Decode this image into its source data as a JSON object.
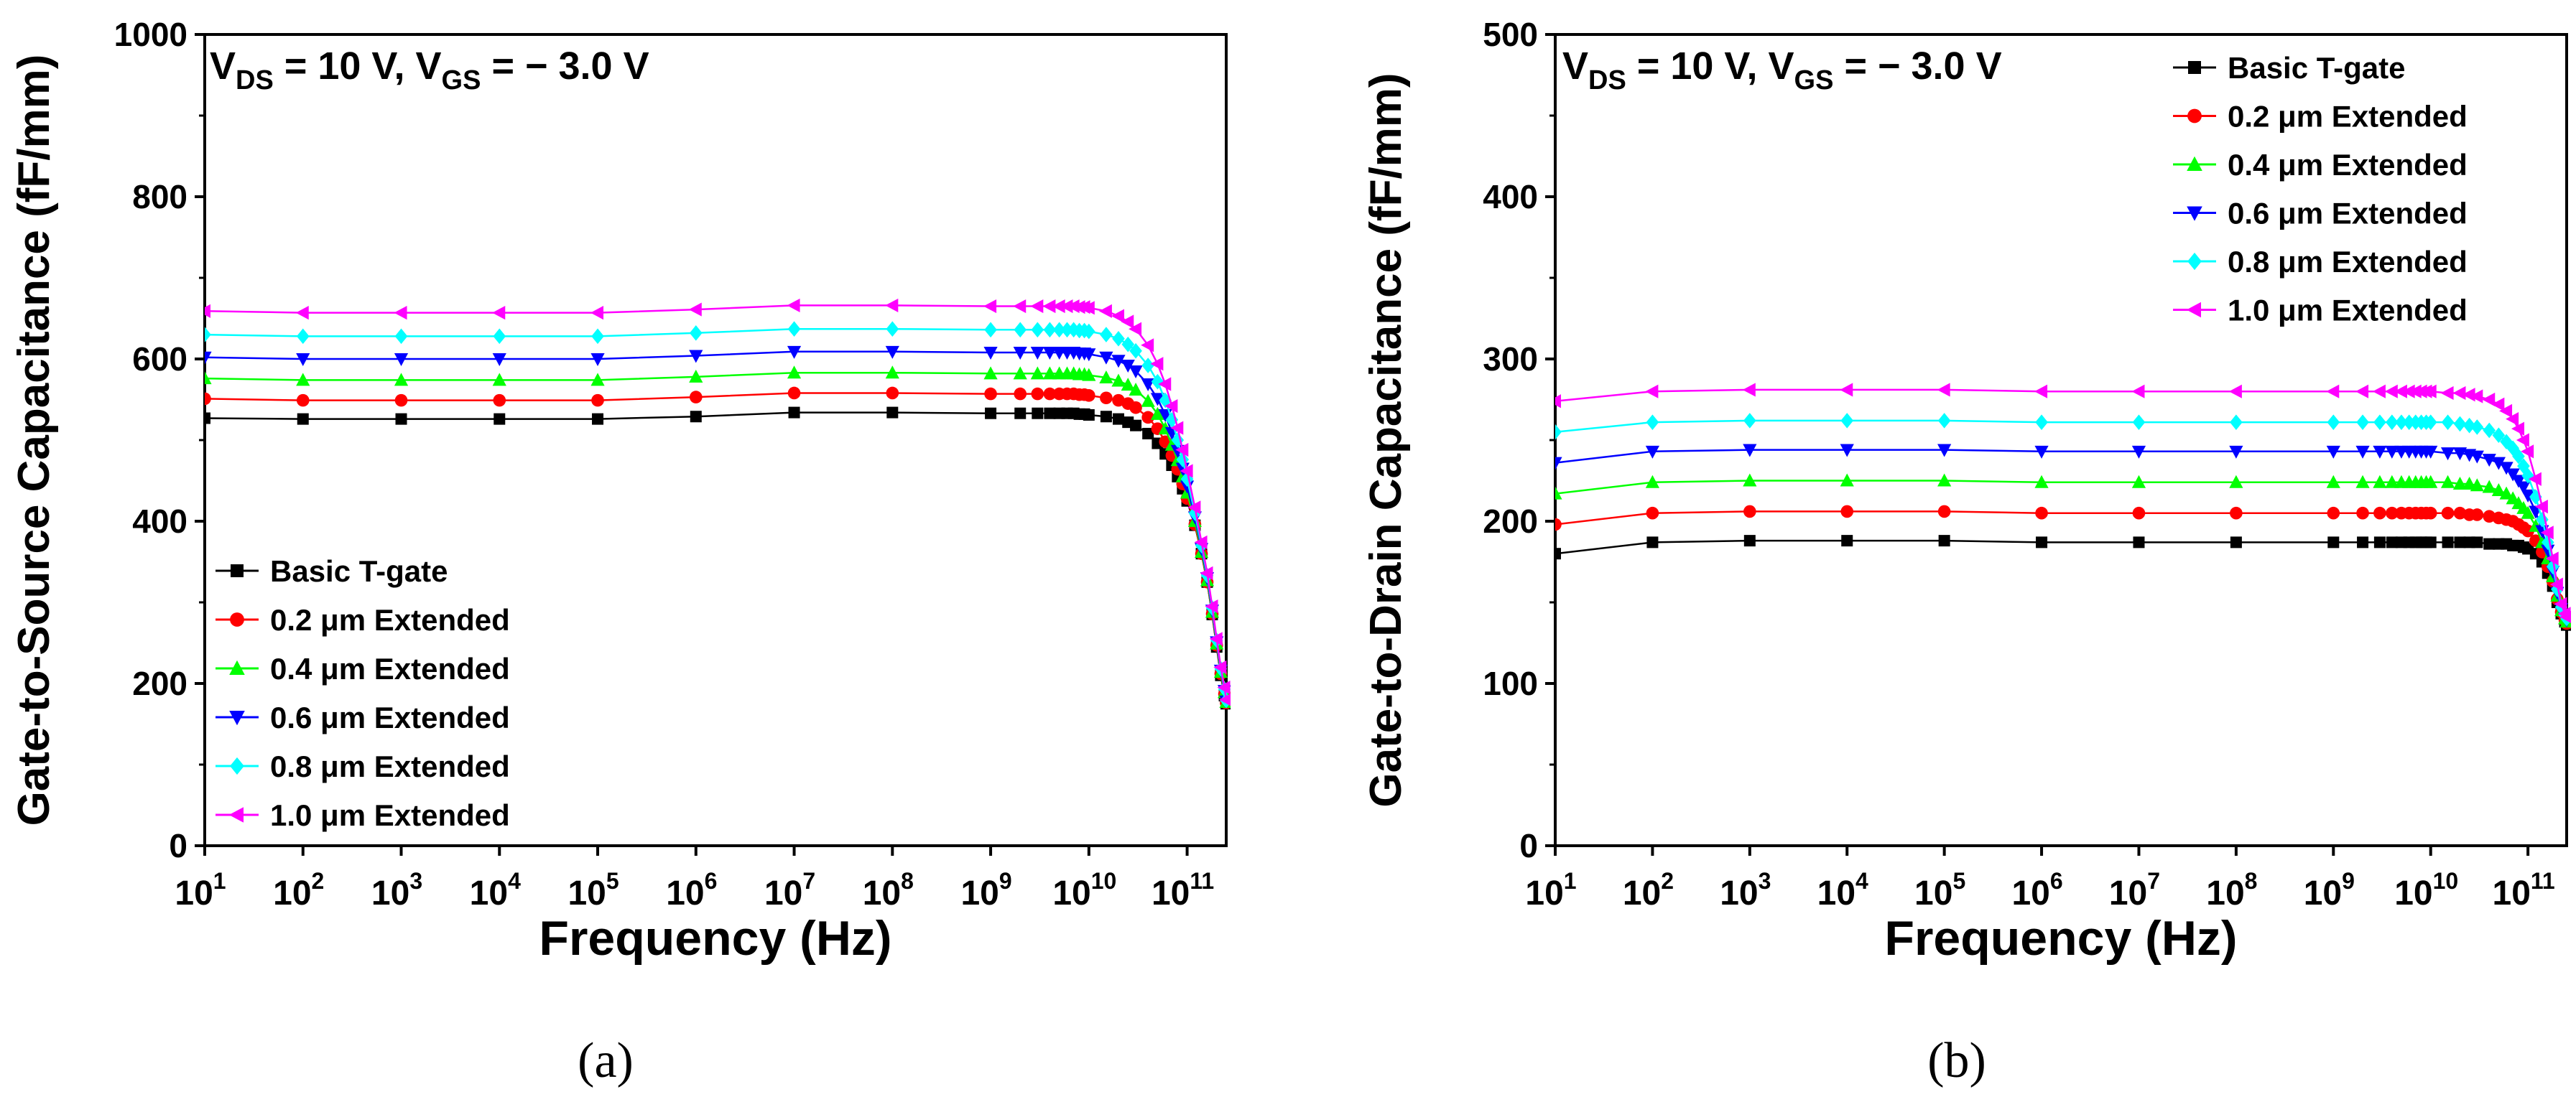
{
  "chart_data": [
    {
      "type": "line",
      "panel_label": "(a)",
      "ylabel": "Gate-to-Source Capacitance (fF/mm)",
      "xlabel": "Frequency (Hz)",
      "condition": {
        "v": "V",
        "ds": "DS",
        "mid": " = 10 V, V",
        "gs": "GS",
        "end": " = − 3.0 V"
      },
      "x_scale": "log",
      "xlim": [
        10,
        250000000000
      ],
      "ylim": [
        0,
        1000
      ],
      "yticks": [
        0,
        200,
        400,
        600,
        800,
        1000
      ],
      "xticks": [
        {
          "value": 10,
          "base": "10",
          "exp": "1"
        },
        {
          "value": 100,
          "base": "10",
          "exp": "2"
        },
        {
          "value": 1000,
          "base": "10",
          "exp": "3"
        },
        {
          "value": 10000,
          "base": "10",
          "exp": "4"
        },
        {
          "value": 100000,
          "base": "10",
          "exp": "5"
        },
        {
          "value": 1000000,
          "base": "10",
          "exp": "6"
        },
        {
          "value": 10000000,
          "base": "10",
          "exp": "7"
        },
        {
          "value": 100000000,
          "base": "10",
          "exp": "8"
        },
        {
          "value": 1000000000,
          "base": "10",
          "exp": "9"
        },
        {
          "value": 10000000000,
          "base": "10",
          "exp": "10"
        },
        {
          "value": 100000000000,
          "base": "10",
          "exp": "11"
        }
      ],
      "legend_position": "bottom-left",
      "x": [
        10,
        100,
        1000,
        10000,
        100000,
        1000000,
        10000000,
        100000000,
        1000000000,
        2000000000,
        3000000000,
        4000000000,
        5000000000,
        6000000000,
        7000000000,
        8000000000,
        9000000000,
        10000000000,
        15000000000,
        20000000000,
        25000000000,
        30000000000,
        40000000000,
        50000000000,
        60000000000,
        70000000000,
        80000000000,
        90000000000,
        100000000000,
        120000000000,
        140000000000,
        160000000000,
        180000000000,
        200000000000,
        220000000000,
        240000000000,
        250000000000
      ],
      "series": [
        {
          "name": "Basic T-gate",
          "color": "#000000",
          "marker": "square",
          "values": [
            527,
            526,
            526,
            526,
            526,
            529,
            534,
            534,
            533,
            533,
            533,
            533,
            533,
            533,
            533,
            532,
            532,
            531,
            529,
            526,
            522,
            518,
            508,
            496,
            483,
            469,
            455,
            440,
            425,
            395,
            360,
            325,
            285,
            245,
            210,
            185,
            175
          ]
        },
        {
          "name": "0.2 μm Extended",
          "color": "#ff0000",
          "marker": "circle",
          "values": [
            551,
            549,
            549,
            549,
            549,
            553,
            558,
            558,
            557,
            557,
            557,
            557,
            557,
            557,
            557,
            556,
            556,
            555,
            552,
            549,
            545,
            540,
            528,
            514,
            498,
            481,
            464,
            446,
            428,
            396,
            360,
            325,
            286,
            247,
            212,
            187,
            176
          ]
        },
        {
          "name": "0.4 μm Extended",
          "color": "#00ff00",
          "marker": "triangle-up",
          "values": [
            576,
            574,
            574,
            574,
            574,
            578,
            583,
            583,
            582,
            582,
            582,
            582,
            582,
            582,
            582,
            581,
            581,
            580,
            577,
            573,
            568,
            562,
            548,
            532,
            514,
            494,
            475,
            455,
            435,
            400,
            362,
            327,
            288,
            249,
            214,
            189,
            177
          ]
        },
        {
          "name": "0.6 μm Extended",
          "color": "#0000ff",
          "marker": "triangle-down",
          "values": [
            602,
            600,
            600,
            600,
            600,
            604,
            609,
            609,
            608,
            608,
            608,
            608,
            608,
            608,
            608,
            607,
            607,
            606,
            602,
            598,
            592,
            585,
            569,
            551,
            531,
            509,
            487,
            465,
            443,
            405,
            366,
            330,
            290,
            251,
            216,
            191,
            178
          ]
        },
        {
          "name": "0.8 μm Extended",
          "color": "#00ffff",
          "marker": "diamond",
          "values": [
            630,
            628,
            628,
            628,
            628,
            632,
            637,
            637,
            636,
            636,
            636,
            636,
            636,
            636,
            636,
            635,
            635,
            634,
            630,
            625,
            618,
            610,
            592,
            572,
            549,
            525,
            500,
            476,
            452,
            410,
            370,
            333,
            293,
            253,
            218,
            193,
            179
          ]
        },
        {
          "name": "1.0 μm Extended",
          "color": "#ff00ff",
          "marker": "triangle-left",
          "values": [
            659,
            657,
            657,
            657,
            657,
            661,
            666,
            666,
            665,
            665,
            665,
            665,
            665,
            665,
            665,
            664,
            664,
            663,
            659,
            653,
            646,
            637,
            617,
            594,
            569,
            542,
            515,
            488,
            462,
            417,
            374,
            336,
            295,
            255,
            220,
            195,
            180
          ]
        }
      ]
    },
    {
      "type": "line",
      "panel_label": "(b)",
      "ylabel": "Gate-to-Drain Capacitance (fF/mm)",
      "xlabel": "Frequency (Hz)",
      "condition": {
        "v": "V",
        "ds": "DS",
        "mid": " = 10 V, V",
        "gs": "GS",
        "end": " = − 3.0 V"
      },
      "x_scale": "log",
      "xlim": [
        10,
        250000000000
      ],
      "ylim": [
        0,
        500
      ],
      "yticks": [
        0,
        100,
        200,
        300,
        400,
        500
      ],
      "xticks": [
        {
          "value": 10,
          "base": "10",
          "exp": "1"
        },
        {
          "value": 100,
          "base": "10",
          "exp": "2"
        },
        {
          "value": 1000,
          "base": "10",
          "exp": "3"
        },
        {
          "value": 10000,
          "base": "10",
          "exp": "4"
        },
        {
          "value": 100000,
          "base": "10",
          "exp": "5"
        },
        {
          "value": 1000000,
          "base": "10",
          "exp": "6"
        },
        {
          "value": 10000000,
          "base": "10",
          "exp": "7"
        },
        {
          "value": 100000000,
          "base": "10",
          "exp": "8"
        },
        {
          "value": 1000000000,
          "base": "10",
          "exp": "9"
        },
        {
          "value": 10000000000,
          "base": "10",
          "exp": "10"
        },
        {
          "value": 100000000000,
          "base": "10",
          "exp": "11"
        }
      ],
      "legend_position": "top-right",
      "x": [
        10,
        100,
        1000,
        10000,
        100000,
        1000000,
        10000000,
        100000000,
        1000000000,
        2000000000,
        3000000000,
        4000000000,
        5000000000,
        6000000000,
        7000000000,
        8000000000,
        9000000000,
        10000000000,
        15000000000,
        20000000000,
        25000000000,
        30000000000,
        40000000000,
        50000000000,
        60000000000,
        70000000000,
        80000000000,
        90000000000,
        100000000000,
        120000000000,
        140000000000,
        160000000000,
        180000000000,
        200000000000,
        220000000000,
        240000000000,
        250000000000
      ],
      "series": [
        {
          "name": "Basic T-gate",
          "color": "#000000",
          "marker": "square",
          "values": [
            180,
            187,
            188,
            188,
            188,
            187,
            187,
            187,
            187,
            187,
            187,
            187,
            187,
            187,
            187,
            187,
            187,
            187,
            187,
            187,
            187,
            187,
            186,
            186,
            186,
            185,
            185,
            184,
            183,
            180,
            175,
            168,
            160,
            150,
            143,
            138,
            136
          ]
        },
        {
          "name": "0.2 μm Extended",
          "color": "#ff0000",
          "marker": "circle",
          "values": [
            198,
            205,
            206,
            206,
            206,
            205,
            205,
            205,
            205,
            205,
            205,
            205,
            205,
            205,
            205,
            205,
            205,
            205,
            205,
            205,
            204,
            204,
            203,
            202,
            201,
            200,
            198,
            196,
            194,
            188,
            181,
            172,
            163,
            152,
            144,
            139,
            137
          ]
        },
        {
          "name": "0.4 μm Extended",
          "color": "#00ff00",
          "marker": "triangle-up",
          "values": [
            217,
            224,
            225,
            225,
            225,
            224,
            224,
            224,
            224,
            224,
            224,
            224,
            224,
            224,
            224,
            224,
            224,
            224,
            224,
            223,
            223,
            222,
            221,
            219,
            217,
            214,
            211,
            208,
            205,
            197,
            187,
            177,
            166,
            154,
            145,
            140,
            138
          ]
        },
        {
          "name": "0.6 μm Extended",
          "color": "#0000ff",
          "marker": "triangle-down",
          "values": [
            236,
            243,
            244,
            244,
            244,
            243,
            243,
            243,
            243,
            243,
            243,
            243,
            243,
            243,
            243,
            243,
            243,
            243,
            242,
            242,
            241,
            240,
            238,
            236,
            233,
            229,
            225,
            221,
            216,
            206,
            194,
            182,
            169,
            156,
            146,
            141,
            139
          ]
        },
        {
          "name": "0.8 μm Extended",
          "color": "#00ffff",
          "marker": "diamond",
          "values": [
            255,
            261,
            262,
            262,
            262,
            261,
            261,
            261,
            261,
            261,
            261,
            261,
            261,
            261,
            261,
            261,
            261,
            261,
            261,
            260,
            259,
            258,
            256,
            253,
            249,
            245,
            240,
            234,
            228,
            215,
            201,
            187,
            172,
            158,
            147,
            142,
            140
          ]
        },
        {
          "name": "1.0 μm Extended",
          "color": "#ff00ff",
          "marker": "triangle-left",
          "values": [
            274,
            280,
            281,
            281,
            281,
            280,
            280,
            280,
            280,
            280,
            280,
            280,
            280,
            280,
            280,
            280,
            280,
            280,
            279,
            279,
            278,
            277,
            275,
            272,
            268,
            263,
            257,
            250,
            243,
            226,
            209,
            193,
            177,
            161,
            149,
            143,
            141
          ]
        }
      ]
    }
  ]
}
